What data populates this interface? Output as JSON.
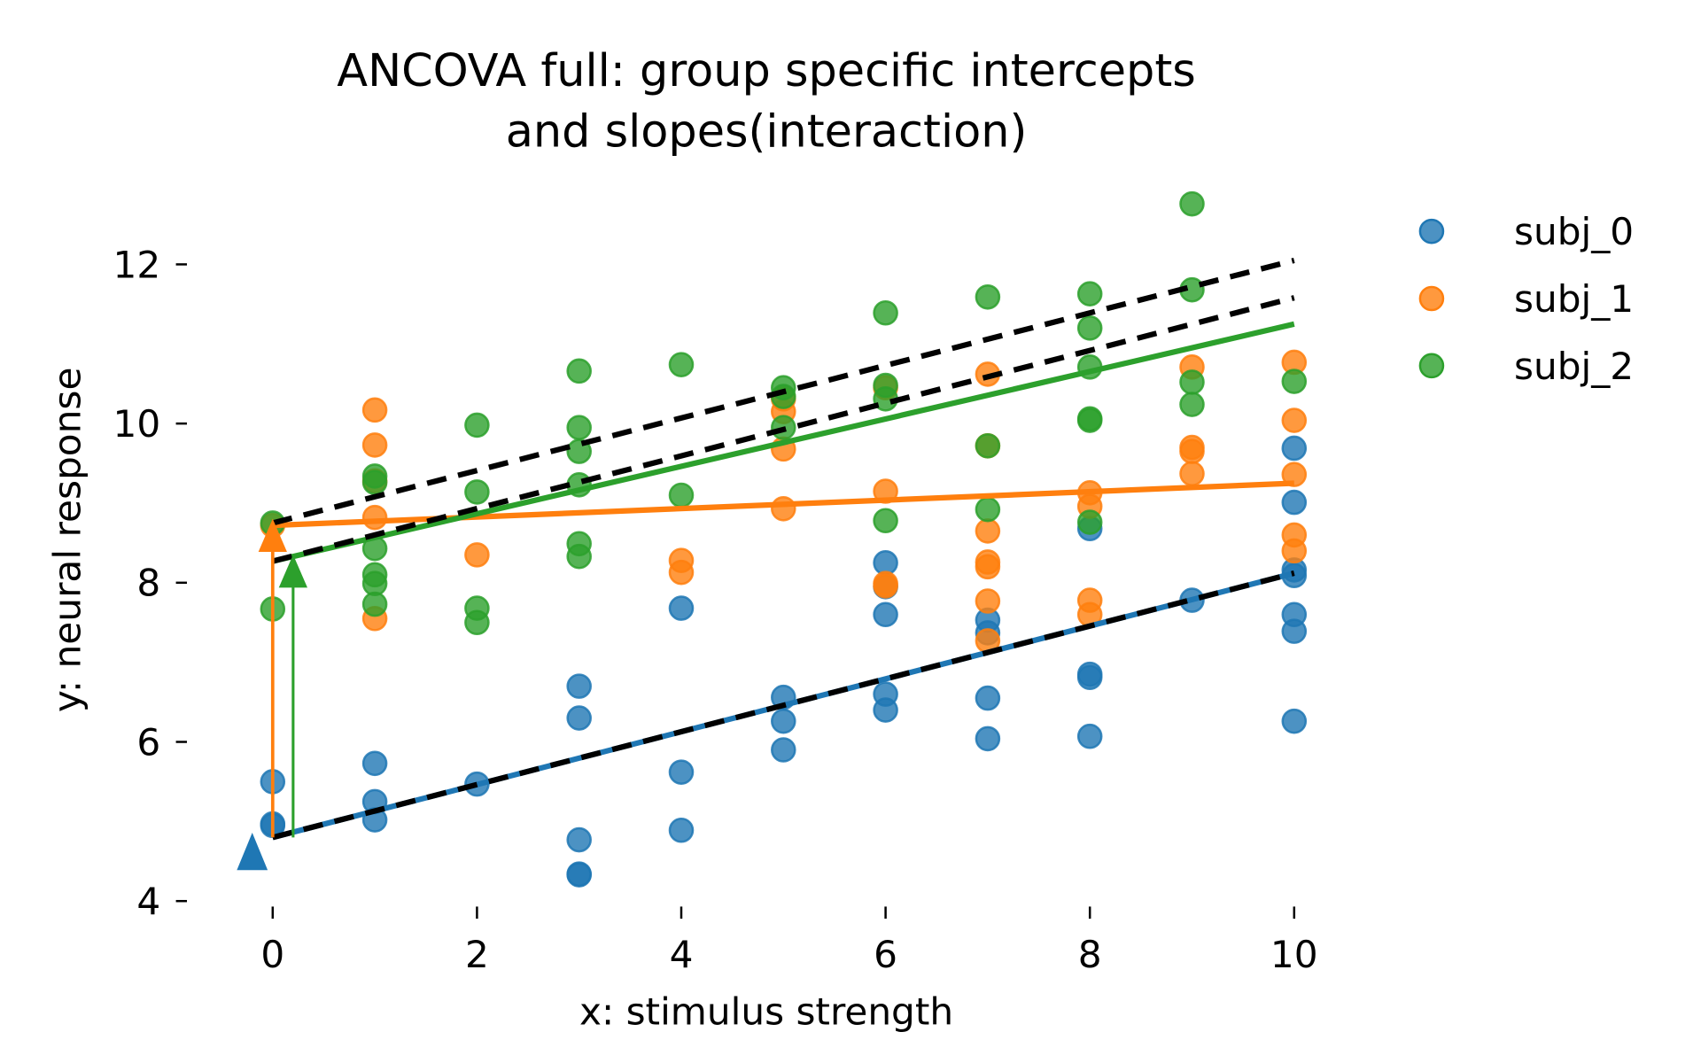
{
  "chart_data": {
    "type": "scatter",
    "title": [
      "ANCOVA full: group specific intercepts",
      "and slopes(interaction)"
    ],
    "xlabel": "x: stimulus strength",
    "ylabel": "y: neural response",
    "xlim": [
      -0.6,
      10.8
    ],
    "ylim": [
      4,
      12.9
    ],
    "xticks": [
      0,
      2,
      4,
      6,
      8,
      10
    ],
    "xtick_labels": [
      "0",
      "2",
      "4",
      "6",
      "8",
      "10"
    ],
    "yticks": [
      4,
      6,
      8,
      10,
      12
    ],
    "ytick_labels": [
      "4",
      "6",
      "8",
      "10",
      "12"
    ],
    "grid": false,
    "legend_position": "outside-top-right",
    "series": [
      {
        "name": "subj_0",
        "color": "#1f77b4",
        "points": [
          [
            0,
            5.5
          ],
          [
            0,
            4.97
          ],
          [
            0,
            4.95
          ],
          [
            1,
            5.73
          ],
          [
            1,
            5.25
          ],
          [
            1,
            5.02
          ],
          [
            2,
            5.47
          ],
          [
            3,
            6.7
          ],
          [
            3,
            6.3
          ],
          [
            3,
            4.77
          ],
          [
            3,
            4.34
          ],
          [
            3,
            4.33
          ],
          [
            4,
            7.68
          ],
          [
            4,
            5.62
          ],
          [
            4,
            4.89
          ],
          [
            5,
            6.56
          ],
          [
            5,
            6.26
          ],
          [
            5,
            5.9
          ],
          [
            6,
            8.25
          ],
          [
            6,
            7.95
          ],
          [
            6,
            7.6
          ],
          [
            6,
            6.6
          ],
          [
            6,
            6.4
          ],
          [
            7,
            7.53
          ],
          [
            7,
            7.37
          ],
          [
            7,
            6.55
          ],
          [
            7,
            6.04
          ],
          [
            8,
            8.68
          ],
          [
            8,
            6.85
          ],
          [
            8,
            6.81
          ],
          [
            8,
            6.07
          ],
          [
            9,
            7.78
          ],
          [
            10,
            9.69
          ],
          [
            10,
            9.01
          ],
          [
            10,
            8.16
          ],
          [
            10,
            8.09
          ],
          [
            10,
            7.6
          ],
          [
            10,
            7.39
          ],
          [
            10,
            6.26
          ]
        ],
        "fit": {
          "intercept": 4.8,
          "slope": 0.332
        }
      },
      {
        "name": "subj_1",
        "color": "#ff7f0e",
        "points": [
          [
            0,
            8.72
          ],
          [
            1,
            10.17
          ],
          [
            1,
            9.73
          ],
          [
            1,
            9.28
          ],
          [
            1,
            8.82
          ],
          [
            1,
            7.55
          ],
          [
            2,
            8.35
          ],
          [
            4,
            8.28
          ],
          [
            4,
            8.13
          ],
          [
            5,
            10.31
          ],
          [
            5,
            10.15
          ],
          [
            5,
            9.68
          ],
          [
            5,
            8.93
          ],
          [
            6,
            10.45
          ],
          [
            6,
            9.15
          ],
          [
            6,
            7.99
          ],
          [
            6,
            7.96
          ],
          [
            7,
            10.62
          ],
          [
            7,
            9.72
          ],
          [
            7,
            8.65
          ],
          [
            7,
            8.26
          ],
          [
            7,
            8.2
          ],
          [
            7,
            7.77
          ],
          [
            7,
            7.27
          ],
          [
            8,
            9.13
          ],
          [
            8,
            8.96
          ],
          [
            8,
            7.78
          ],
          [
            8,
            7.6
          ],
          [
            9,
            10.71
          ],
          [
            9,
            9.7
          ],
          [
            9,
            9.65
          ],
          [
            9,
            9.37
          ],
          [
            10,
            10.77
          ],
          [
            10,
            10.04
          ],
          [
            10,
            9.36
          ],
          [
            10,
            8.6
          ],
          [
            10,
            8.4
          ]
        ],
        "fit": {
          "intercept": 8.72,
          "slope": 0.053
        }
      },
      {
        "name": "subj_2",
        "color": "#2ca02c",
        "points": [
          [
            0,
            8.75
          ],
          [
            0,
            7.67
          ],
          [
            1,
            9.34
          ],
          [
            1,
            9.26
          ],
          [
            1,
            8.43
          ],
          [
            1,
            8.1
          ],
          [
            1,
            7.99
          ],
          [
            1,
            7.73
          ],
          [
            2,
            9.98
          ],
          [
            2,
            9.14
          ],
          [
            2,
            7.68
          ],
          [
            2,
            7.5
          ],
          [
            3,
            10.66
          ],
          [
            3,
            9.95
          ],
          [
            3,
            9.65
          ],
          [
            3,
            9.23
          ],
          [
            3,
            8.49
          ],
          [
            3,
            8.33
          ],
          [
            4,
            10.74
          ],
          [
            4,
            9.1
          ],
          [
            5,
            10.45
          ],
          [
            5,
            10.34
          ],
          [
            5,
            9.95
          ],
          [
            6,
            11.39
          ],
          [
            6,
            10.48
          ],
          [
            6,
            10.31
          ],
          [
            6,
            8.78
          ],
          [
            7,
            11.59
          ],
          [
            7,
            9.72
          ],
          [
            7,
            8.92
          ],
          [
            8,
            11.63
          ],
          [
            8,
            11.2
          ],
          [
            8,
            10.71
          ],
          [
            8,
            10.06
          ],
          [
            8,
            10.04
          ],
          [
            8,
            8.76
          ],
          [
            9,
            12.76
          ],
          [
            9,
            11.68
          ],
          [
            9,
            10.52
          ],
          [
            9,
            10.24
          ],
          [
            10,
            10.53
          ]
        ],
        "fit": {
          "intercept": 8.27,
          "slope": 0.298
        }
      }
    ],
    "reference_lines": [
      {
        "name": "additive-prediction-subj1",
        "style": "dashed",
        "color": "#000000",
        "from": [
          0,
          8.75
        ],
        "to": [
          10,
          12.05
        ]
      },
      {
        "name": "additive-prediction-subj2",
        "style": "dashed",
        "color": "#000000",
        "from": [
          0,
          8.27
        ],
        "to": [
          10,
          11.58
        ]
      },
      {
        "name": "baseline-subj0",
        "style": "dashed",
        "color": "#000000",
        "from": [
          0,
          4.8
        ],
        "to": [
          10,
          8.12
        ]
      }
    ],
    "arrows": [
      {
        "name": "intercept-arrow-subj0",
        "color": "#1f77b4",
        "x": -0.2,
        "from": 4.5,
        "to": 4.68
      },
      {
        "name": "intercept-arrow-subj1",
        "color": "#ff7f0e",
        "x": 0.0,
        "from": 4.8,
        "to": 8.72
      },
      {
        "name": "intercept-arrow-subj2",
        "color": "#2ca02c",
        "x": 0.2,
        "from": 4.8,
        "to": 8.27
      }
    ]
  }
}
